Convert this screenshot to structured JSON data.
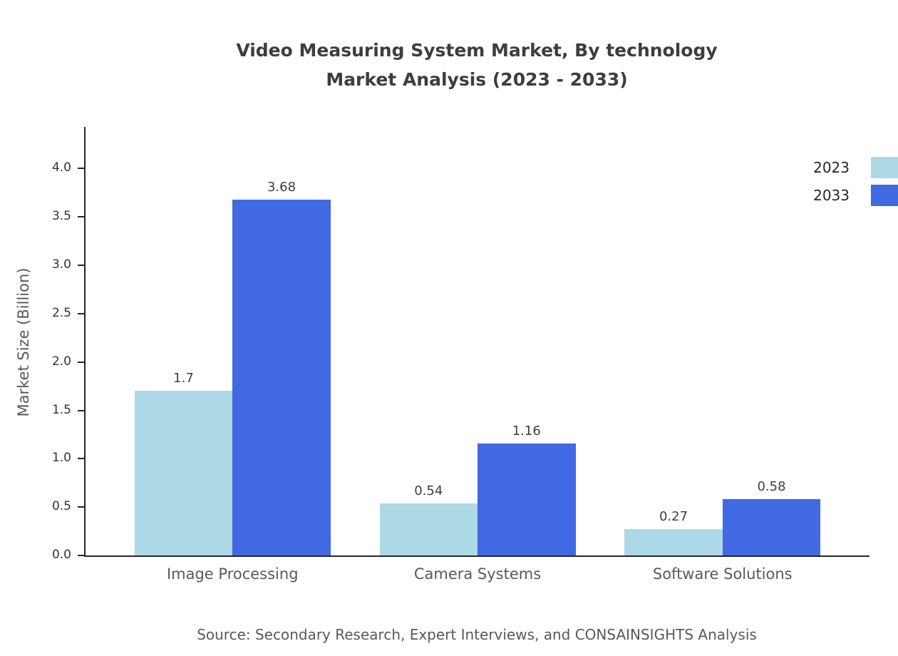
{
  "chart_data": {
    "type": "bar",
    "title": "Video Measuring System Market, By technology Market Analysis (2023 - 2033)",
    "title_lines": [
      "Video Measuring System Market, By technology",
      "Market Analysis (2023 - 2033)"
    ],
    "categories": [
      "Image Processing",
      "Camera Systems",
      "Software Solutions"
    ],
    "series": [
      {
        "name": "2023",
        "color": "#add8e6",
        "values": [
          1.7,
          0.54,
          0.27
        ]
      },
      {
        "name": "2033",
        "color": "#4169e1",
        "values": [
          3.68,
          1.16,
          0.58
        ]
      }
    ],
    "xlabel": "",
    "ylabel": "Market Size (Billion)",
    "yticks": [
      0.0,
      0.5,
      1.0,
      1.5,
      2.0,
      2.5,
      3.0,
      3.5,
      4.0
    ],
    "ylim": [
      0,
      4.43
    ],
    "grid": false,
    "legend_position": "top-right",
    "bar_value_labels_shown": true,
    "source": "Source: Secondary Research, Expert Interviews, and CONSAINSIGHTS Analysis",
    "colors": {
      "axis": "#262626",
      "title_text": "#3d3d3d",
      "tick_text": "#333333",
      "label_text": "#595959"
    }
  }
}
